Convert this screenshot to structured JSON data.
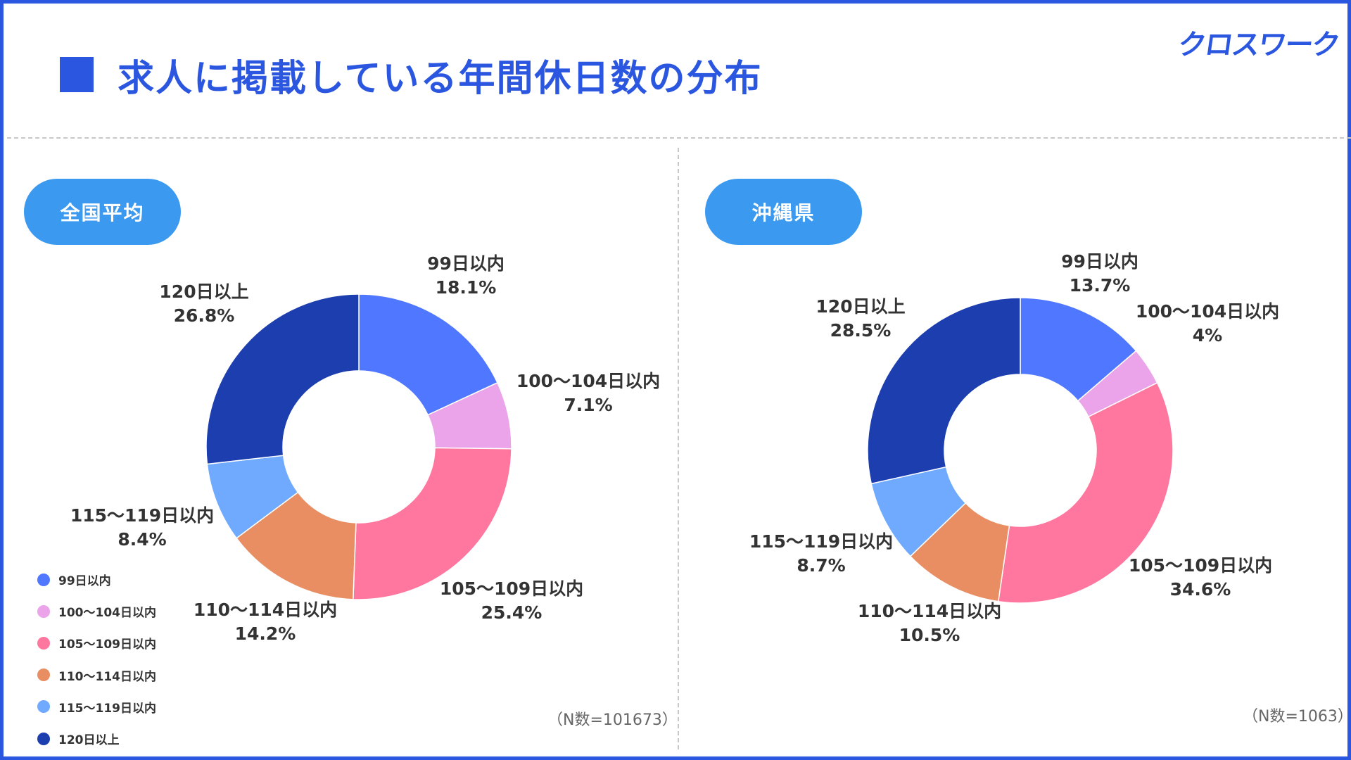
{
  "title": "求人に掲載している年間休日数の分布",
  "brand": "クロスワーク",
  "colors": {
    "accent": "#2a56e0",
    "pill": "#3b9af0",
    "slices": [
      "#5077ff",
      "#eba3ea",
      "#ff779f",
      "#e98e62",
      "#6faaff",
      "#1c3eae"
    ]
  },
  "legend": [
    {
      "label": "99日以内",
      "color": "#5077ff"
    },
    {
      "label": "100〜104日以内",
      "color": "#eba3ea"
    },
    {
      "label": "105〜109日以内",
      "color": "#ff779f"
    },
    {
      "label": "110〜114日以内",
      "color": "#e98e62"
    },
    {
      "label": "115〜119日以内",
      "color": "#6faaff"
    },
    {
      "label": "120日以上",
      "color": "#1c3eae"
    }
  ],
  "chart_data": [
    {
      "type": "pie",
      "variant": "donut",
      "title": "全国平均",
      "n_label": "（N数=101673）",
      "categories": [
        "99日以内",
        "100〜104日以内",
        "105〜109日以内",
        "110〜114日以内",
        "115〜119日以内",
        "120日以上"
      ],
      "values": [
        18.1,
        7.1,
        25.4,
        14.2,
        8.4,
        26.8
      ],
      "value_labels": [
        "18.1%",
        "7.1%",
        "25.4%",
        "14.2%",
        "8.4%",
        "26.8%"
      ],
      "legend": "bottom-left"
    },
    {
      "type": "pie",
      "variant": "donut",
      "title": "沖縄県",
      "n_label": "（N数=1063）",
      "categories": [
        "99日以内",
        "100〜104日以内",
        "105〜109日以内",
        "110〜114日以内",
        "115〜119日以内",
        "120日以上"
      ],
      "values": [
        13.7,
        4,
        34.6,
        10.5,
        8.7,
        28.5
      ],
      "value_labels": [
        "13.7%",
        "4%",
        "34.6%",
        "10.5%",
        "8.7%",
        "28.5%"
      ]
    }
  ]
}
